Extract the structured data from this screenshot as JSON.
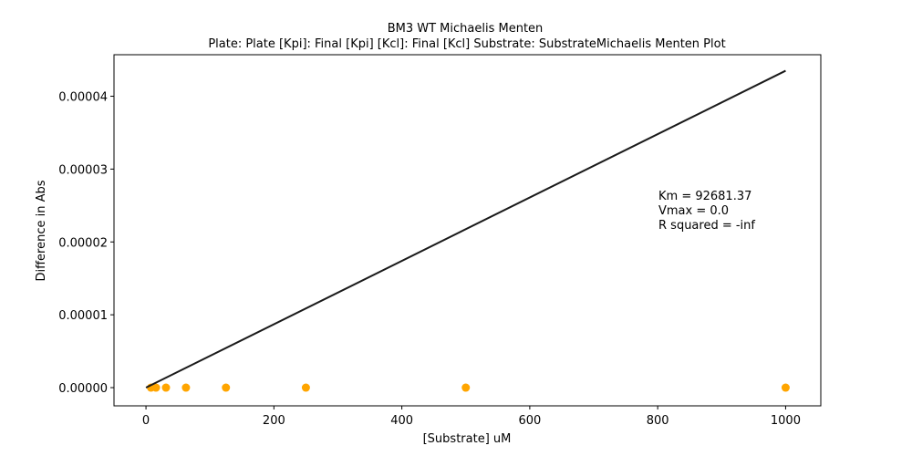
{
  "chart_data": {
    "type": "scatter",
    "title": "BM3 WT Michaelis Menten",
    "subtitle": "Plate: Plate  [Kpi]: Final [Kpi]  [Kcl]: Final [Kcl]  Substrate: SubstrateMichaelis Menten Plot",
    "xlabel": "[Substrate] uM",
    "ylabel": "Difference in Abs",
    "xlim": [
      -50,
      1055
    ],
    "ylim": [
      -2.5e-06,
      4.57e-05
    ],
    "xticks": [
      0,
      200,
      400,
      600,
      800,
      1000
    ],
    "xtick_labels": [
      "0",
      "200",
      "400",
      "600",
      "800",
      "1000"
    ],
    "yticks": [
      0,
      1e-05,
      2e-05,
      3e-05,
      4e-05
    ],
    "ytick_labels": [
      "0.00000",
      "0.00001",
      "0.00002",
      "0.00003",
      "0.00004"
    ],
    "grid": false,
    "series": [
      {
        "kind": "points",
        "color": "#FFA500",
        "x": [
          7.8125,
          15.625,
          31.25,
          62.5,
          125,
          250,
          500,
          1000
        ],
        "y": [
          0,
          0,
          0,
          0,
          0,
          0,
          0,
          0
        ]
      },
      {
        "kind": "fit-line",
        "color": "#1a1a1a",
        "x": [
          0,
          1000
        ],
        "y": [
          0,
          4.35e-05
        ]
      }
    ],
    "annotations": [
      "Km = 92681.37",
      "Vmax = 0.0",
      "R squared = -inf"
    ]
  }
}
